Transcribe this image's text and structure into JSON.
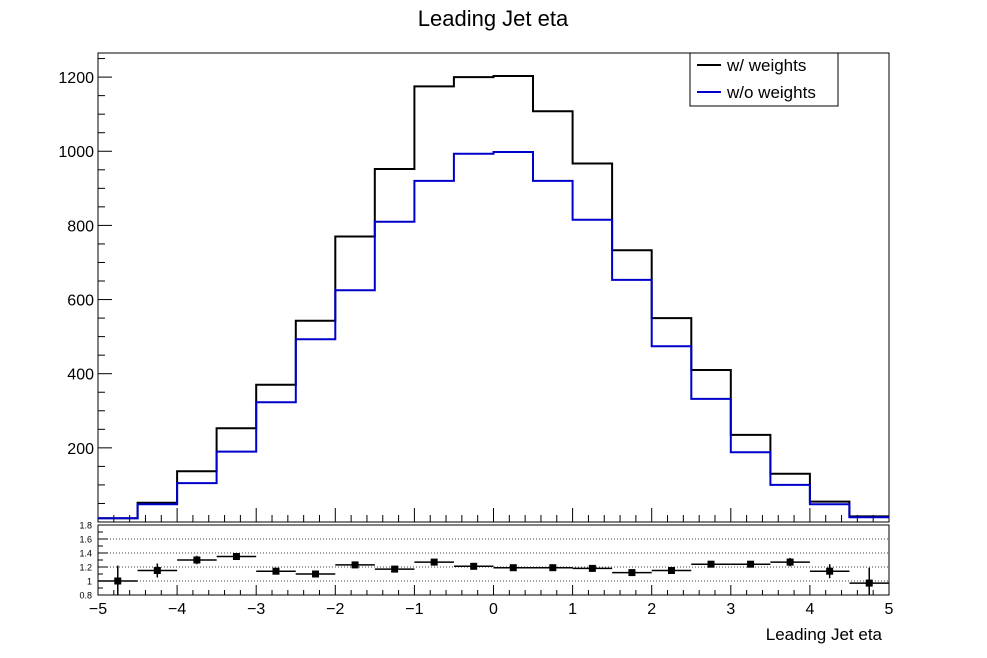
{
  "chart_data": [
    {
      "type": "line",
      "style": "step-histogram",
      "title": "Leading Jet eta",
      "xlabel": "",
      "ylabel": "",
      "xlim": [
        -5,
        5
      ],
      "ylim": [
        0,
        1265
      ],
      "bin_edges": [
        -5,
        -4.5,
        -4,
        -3.5,
        -3,
        -2.5,
        -2,
        -1.5,
        -1,
        -0.5,
        0,
        0.5,
        1,
        1.5,
        2,
        2.5,
        3,
        3.5,
        4,
        4.5,
        5
      ],
      "y_ticks": [
        200,
        400,
        600,
        800,
        1000,
        1200
      ],
      "y_tick_labels": [
        "200",
        "400",
        "600",
        "800",
        "1000",
        "1200"
      ],
      "legend": {
        "position": "top-right"
      },
      "series": [
        {
          "name": "w/ weights",
          "color": "#000000",
          "values": [
            10,
            52,
            137,
            253,
            370,
            543,
            770,
            952,
            1175,
            1200,
            1203,
            1108,
            967,
            733,
            550,
            410,
            235,
            130,
            55,
            15
          ]
        },
        {
          "name": "w/o weights",
          "color": "#0000cc",
          "values": [
            10,
            48,
            105,
            190,
            323,
            493,
            625,
            810,
            920,
            993,
            998,
            920,
            815,
            653,
            474,
            332,
            188,
            100,
            48,
            13
          ]
        }
      ]
    },
    {
      "type": "scatter",
      "style": "ratio-with-errorbars",
      "xlabel": "Leading Jet eta",
      "xlim": [
        -5,
        5
      ],
      "ylim": [
        0.8,
        1.8
      ],
      "x_ticks": [
        -5,
        -4,
        -3,
        -2,
        -1,
        0,
        1,
        2,
        3,
        4,
        5
      ],
      "x_tick_labels": [
        "−5",
        "−4",
        "−3",
        "−2",
        "−1",
        "0",
        "1",
        "2",
        "3",
        "4",
        "5"
      ],
      "y_ticks": [
        0.8,
        1,
        1.2,
        1.4,
        1.6,
        1.8
      ],
      "y_tick_labels": [
        "0.8",
        "1",
        "1.2",
        "1.4",
        "1.6",
        "1.8"
      ],
      "grid_y": [
        1,
        1.2,
        1.4,
        1.6
      ],
      "x": [
        -4.75,
        -4.25,
        -3.75,
        -3.25,
        -2.75,
        -2.25,
        -1.75,
        -1.25,
        -0.75,
        -0.25,
        0.25,
        0.75,
        1.25,
        1.75,
        2.25,
        2.75,
        3.25,
        3.75,
        4.25,
        4.75
      ],
      "values": [
        1.0,
        1.15,
        1.3,
        1.35,
        1.14,
        1.1,
        1.23,
        1.17,
        1.27,
        1.21,
        1.19,
        1.19,
        1.18,
        1.12,
        1.15,
        1.24,
        1.24,
        1.27,
        1.14,
        0.97
      ],
      "errors": [
        0.22,
        0.1,
        0.06,
        0.04,
        0.03,
        0.03,
        0.02,
        0.02,
        0.02,
        0.02,
        0.02,
        0.02,
        0.02,
        0.02,
        0.03,
        0.03,
        0.04,
        0.06,
        0.1,
        0.22
      ],
      "marker_color": "#000000"
    }
  ]
}
